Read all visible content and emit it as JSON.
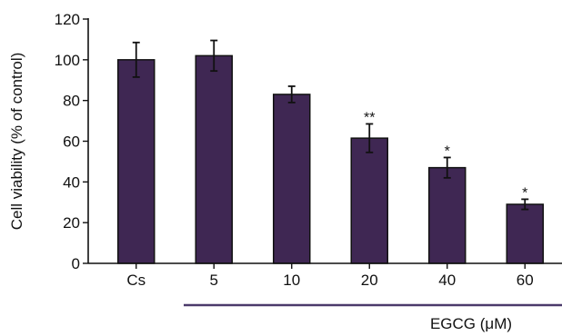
{
  "chart_data": {
    "type": "bar",
    "categories": [
      "Cs",
      "5",
      "10",
      "20",
      "40",
      "60"
    ],
    "values": [
      100,
      102,
      83,
      61.5,
      47,
      29
    ],
    "errors": [
      8.5,
      7.5,
      4,
      7,
      5,
      2.5
    ],
    "significance": [
      "",
      "",
      "",
      "**",
      "*",
      "*"
    ],
    "ylabel": "Cell viability (% of control)",
    "xlabel": "",
    "ylim": [
      0,
      120
    ],
    "yticks": [
      0,
      20,
      40,
      60,
      80,
      100,
      120
    ],
    "group_label": "EGCG (μM)",
    "bar_color": "#3f2753",
    "group_line_color": "#4b3a6b",
    "grid": false,
    "legend": "none"
  }
}
